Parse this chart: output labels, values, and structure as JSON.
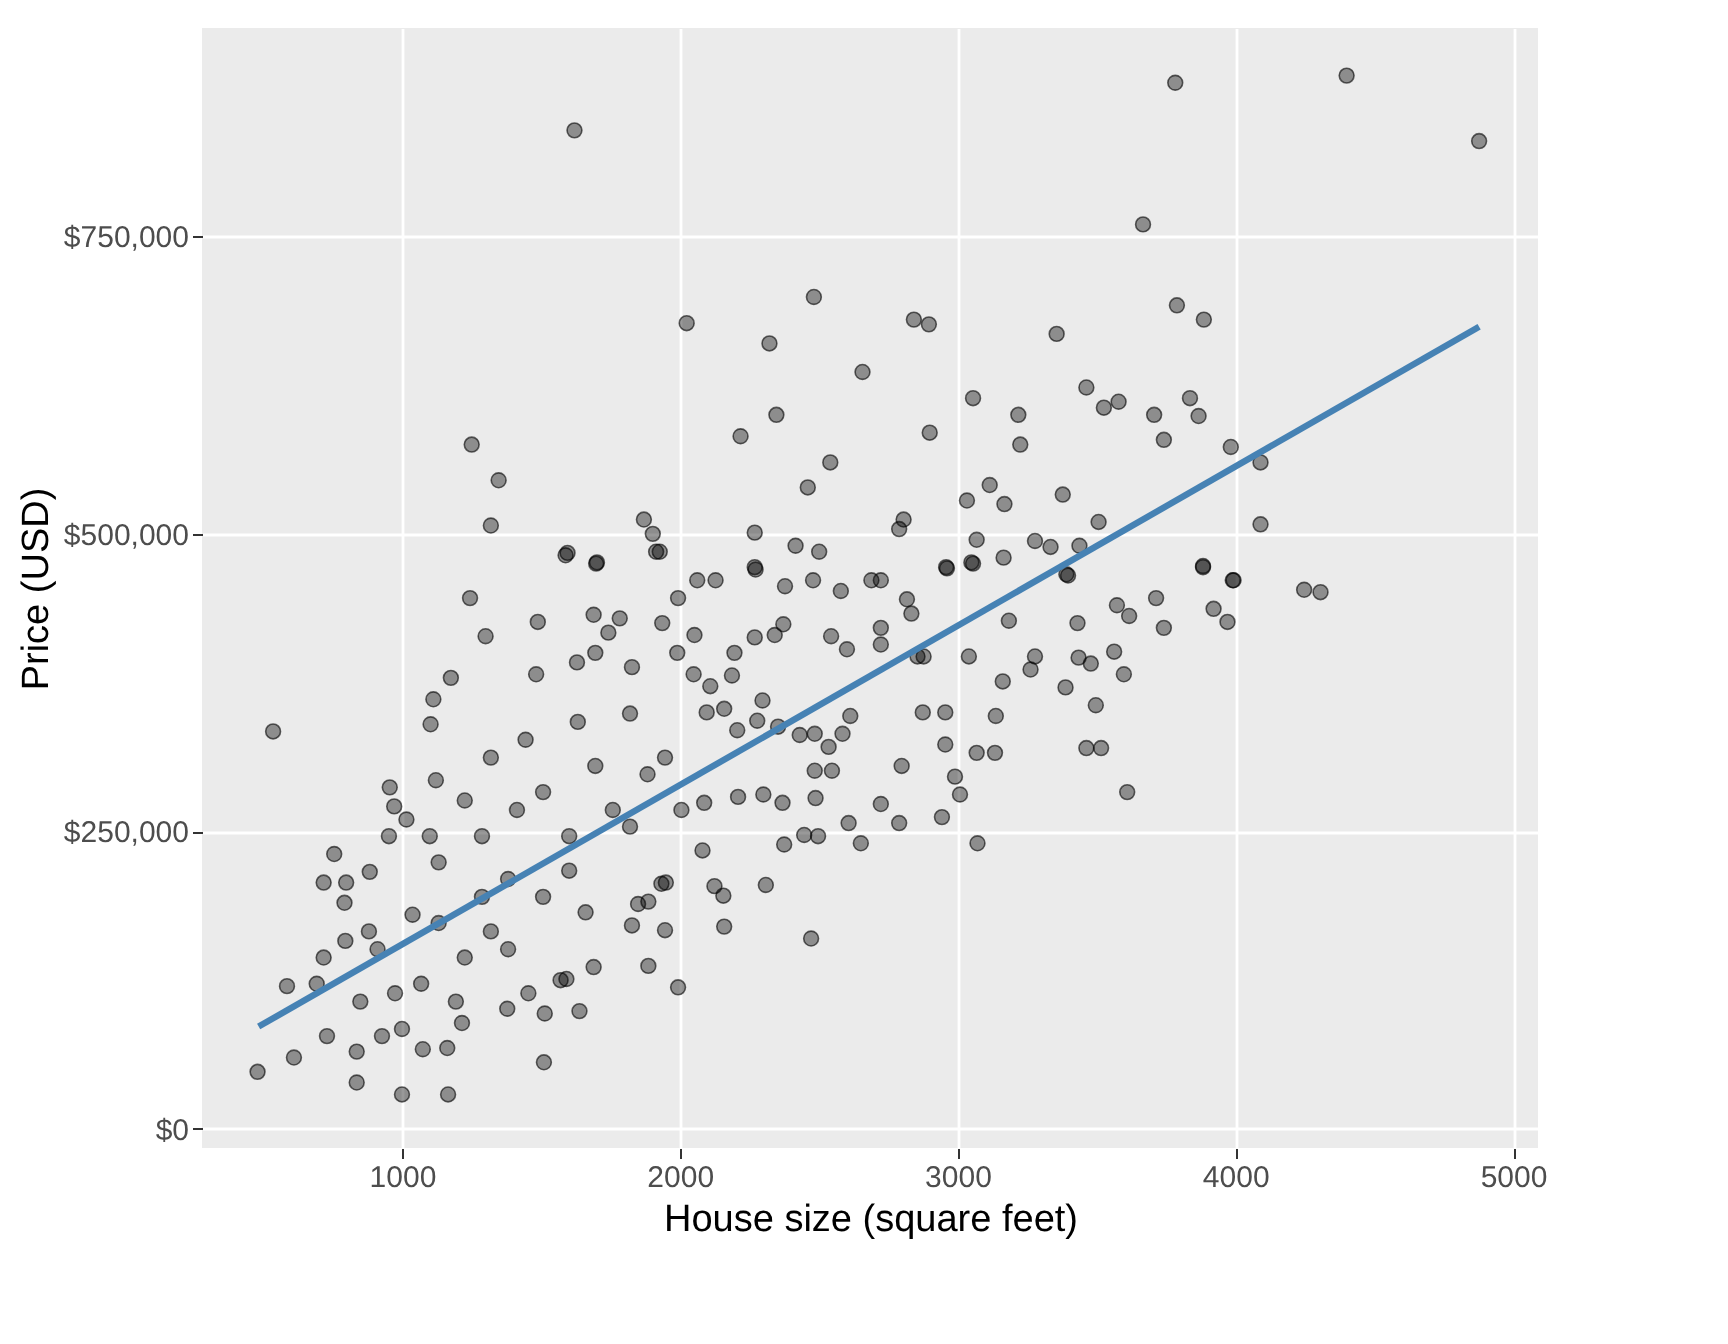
{
  "chart_data": {
    "type": "scatter",
    "xlabel": "House size (square feet)",
    "ylabel": "Price (USD)",
    "xlim": [
      280,
      5090
    ],
    "ylim": [
      -16000,
      925000
    ],
    "xticks": [
      1000,
      2000,
      3000,
      4000,
      5000
    ],
    "yticks": [
      {
        "value": 0,
        "label": "$0"
      },
      {
        "value": 250000,
        "label": "$250,000"
      },
      {
        "value": 500000,
        "label": "$500,000"
      },
      {
        "value": 750000,
        "label": "$750,000"
      }
    ],
    "grid": true,
    "series": [
      {
        "marker": "circle",
        "color": "#000000",
        "x": [
          1621,
          3784,
          4401,
          4878,
          3668,
          2483,
          2025,
          2843,
          2897,
          3790,
          3887,
          2323,
          3357,
          2658,
          1251,
          1348,
          1320,
          2348,
          2219,
          2542,
          2461,
          2900,
          3056,
          3219,
          3226,
          3464,
          3527,
          3580,
          3708,
          3743,
          3837,
          3868,
          3984,
          4091,
          4091,
          3034,
          3116,
          3169,
          3379,
          3508,
          2790,
          2806,
          2270,
          1871,
          1903,
          1928,
          1596,
          1699,
          2417,
          2502,
          2273,
          3069,
          3279,
          3335,
          3439,
          3166,
          2962,
          3056,
          3884,
          3994,
          4248,
          4307,
          3398,
          536,
          480,
          611,
          837,
          1000,
          1166,
          1511,
          1994,
          2473,
          1887,
          1639,
          1514,
          3072,
          3611,
          3464,
          3517,
          3498,
          3599,
          3564,
          3480,
          3389,
          3436,
          3743,
          3618,
          3574,
          3715,
          3922,
          3972,
          3884,
          3991,
          3392,
          3432,
          3263,
          3279,
          3185,
          3163,
          3138,
          3135,
          3069,
          3041,
          2959,
          3050,
          2944,
          3009,
          2991,
          2956,
          2956,
          2875,
          2799,
          2790,
          2724,
          2652,
          2608,
          2498,
          2448,
          2370,
          2376,
          2310,
          2160,
          2157,
          2125,
          2082,
          1947,
          1934,
          1887,
          1828,
          1592,
          1690,
          1455,
          1379,
          1163,
          1075,
          837,
          730,
          693,
          586,
          718,
          796,
          881,
          793,
          799,
          718,
          756,
          884,
          953,
          972,
          956,
          1016,
          1103,
          1113,
          1176,
          1122,
          1245,
          1301,
          1489,
          1483,
          1589,
          1702,
          1690,
          1743,
          1784,
          1828,
          1630,
          1696,
          1915,
          1937,
          1994,
          2063,
          2129,
          2270,
          2379,
          2480,
          2580,
          2690,
          2724,
          2818,
          2834,
          2856,
          2878,
          2724,
          2724,
          2602,
          2545,
          2373,
          2342,
          2270,
          2197,
          2188,
          2110,
          2053,
          1991,
          2050,
          2097,
          2160,
          2207,
          2279,
          2298,
          2354,
          2432,
          2486,
          2536,
          2586,
          2614,
          2548,
          2486,
          2489,
          2301,
          2210,
          2088,
          2006,
          1950,
          1850,
          1661,
          1571,
          1216,
          1000,
          928,
          1132,
          1288,
          1382,
          1226,
          1069,
          975,
          1320,
          1508,
          1602,
          1759,
          1884,
          1696,
          1508,
          1414,
          1288,
          1132,
          1038,
          912,
          850,
          1194,
          1382,
          1602,
          1821,
          1947,
          1821,
          1633,
          1445,
          1320,
          1226,
          1100
        ],
        "values": [
          839000,
          879000,
          885000,
          830000,
          760000,
          699000,
          677000,
          680000,
          676000,
          692000,
          680000,
          660000,
          668000,
          636000,
          575000,
          545000,
          507000,
          600000,
          582000,
          560000,
          539000,
          585000,
          614000,
          600000,
          575000,
          623000,
          606000,
          611000,
          600000,
          579000,
          614000,
          599000,
          573000,
          560000,
          508000,
          528000,
          541000,
          525000,
          533000,
          510000,
          504000,
          512000,
          501000,
          512000,
          500000,
          485000,
          484000,
          475000,
          490000,
          485000,
          470000,
          495000,
          494000,
          489000,
          490000,
          480000,
          471000,
          475000,
          472000,
          461000,
          453000,
          451000,
          465000,
          334000,
          48000,
          60000,
          39000,
          29000,
          29000,
          56000,
          119000,
          160000,
          137000,
          99000,
          97000,
          240000,
          283000,
          320000,
          320000,
          356000,
          382000,
          401000,
          391000,
          371000,
          396000,
          421000,
          431000,
          440000,
          446000,
          437000,
          426000,
          473000,
          461000,
          466000,
          425000,
          386000,
          397000,
          427000,
          376000,
          347000,
          316000,
          316000,
          397000,
          472000,
          476000,
          262000,
          281000,
          296000,
          323000,
          350000,
          350000,
          305000,
          257000,
          273000,
          240000,
          257000,
          246000,
          247000,
          274000,
          239000,
          205000,
          170000,
          196000,
          204000,
          234000,
          167000,
          206000,
          191000,
          171000,
          126000,
          136000,
          114000,
          101000,
          68000,
          67000,
          65000,
          78000,
          122000,
          120000,
          144000,
          158000,
          166000,
          190000,
          207000,
          207000,
          231000,
          216000,
          246000,
          271000,
          287000,
          260000,
          340000,
          361000,
          379000,
          293000,
          446000,
          414000,
          426000,
          382000,
          482000,
          476000,
          432000,
          417000,
          429000,
          388000,
          392000,
          400000,
          485000,
          425000,
          446000,
          461000,
          461000,
          472000,
          456000,
          461000,
          452000,
          461000,
          461000,
          445000,
          433000,
          397000,
          397000,
          407000,
          421000,
          403000,
          414000,
          424000,
          415000,
          413000,
          400000,
          381000,
          372000,
          415000,
          400000,
          382000,
          350000,
          353000,
          335000,
          343000,
          360000,
          338000,
          331000,
          332000,
          321000,
          332000,
          347000,
          301000,
          301000,
          278000,
          281000,
          279000,
          274000,
          268000,
          207000,
          189000,
          182000,
          125000,
          89000,
          84000,
          78000,
          173000,
          195000,
          210000,
          144000,
          122000,
          114000,
          166000,
          195000,
          246000,
          268000,
          298000,
          305000,
          283000,
          268000,
          246000,
          224000,
          180000,
          151000,
          107000,
          107000,
          151000,
          217000,
          254000,
          312000,
          349000,
          342000,
          327000,
          312000,
          276000,
          246000
        ]
      },
      {
        "type": "line",
        "marker": "none",
        "line_style": "solid",
        "color": "#4682b4",
        "x": [
          484,
          4878
        ],
        "values": [
          86000,
          674000
        ]
      }
    ]
  }
}
